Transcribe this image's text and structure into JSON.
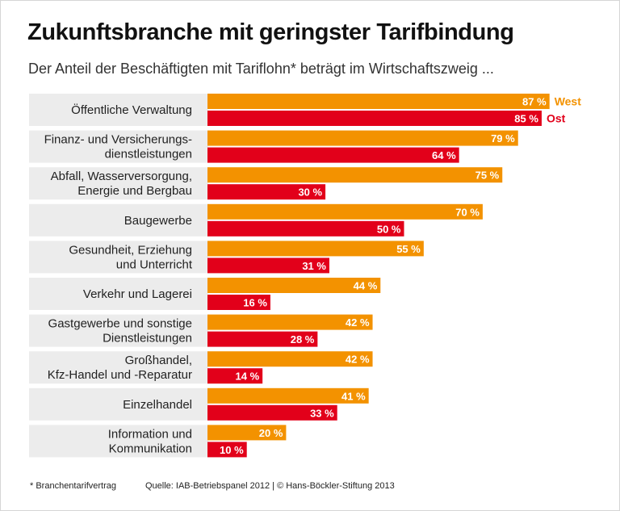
{
  "title": "Zukunftsbranche mit geringster Tarifbindung",
  "subtitle": "Der Anteil der Beschäftigten mit Tariflohn* beträgt im Wirtschaftszweig ...",
  "footnote": "* Branchentarifvertrag",
  "source": "Quelle: IAB-Betriebspanel 2012 | © Hans-Böckler-Stiftung 2013",
  "colors": {
    "west": "#f39200",
    "ost": "#e2001a",
    "band": "#ececec"
  },
  "chart_data": {
    "type": "bar",
    "orientation": "horizontal",
    "unit": "%",
    "xlim": [
      0,
      100
    ],
    "legend_placement": "right of first bars",
    "categories": [
      [
        "Öffentliche Verwaltung"
      ],
      [
        "Finanz- und Versicherungs-",
        "dienstleistungen"
      ],
      [
        "Abfall, Wasserversorgung,",
        "Energie und Bergbau"
      ],
      [
        "Baugewerbe"
      ],
      [
        "Gesundheit, Erziehung",
        "und Unterricht"
      ],
      [
        "Verkehr und Lagerei"
      ],
      [
        "Gastgewerbe und sonstige",
        "Dienstleistungen"
      ],
      [
        "Großhandel,",
        "Kfz-Handel und -Reparatur"
      ],
      [
        "Einzelhandel"
      ],
      [
        "Information und",
        "Kommunikation"
      ]
    ],
    "series": [
      {
        "name": "West",
        "color": "#f39200",
        "values": [
          87,
          79,
          75,
          70,
          55,
          44,
          42,
          42,
          41,
          20
        ]
      },
      {
        "name": "Ost",
        "color": "#e2001a",
        "values": [
          85,
          64,
          30,
          50,
          31,
          16,
          28,
          14,
          33,
          10
        ]
      }
    ]
  }
}
